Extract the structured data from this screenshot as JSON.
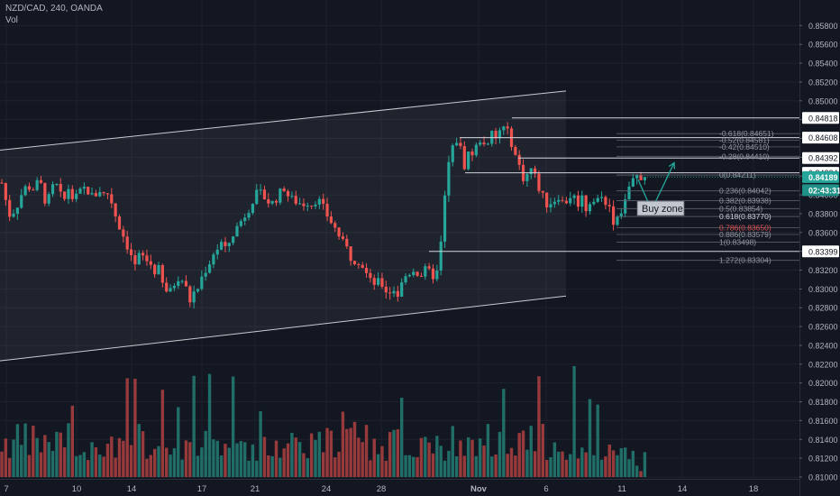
{
  "header": {
    "symbol_line": "NZD/CAD, 240, OANDA",
    "volume_label": "Vol"
  },
  "colors": {
    "background": "#131722",
    "up": "#26a69a",
    "down": "#ef5350",
    "up_volume": "#22786f",
    "down_volume": "#a63e3f",
    "channel_line": "#c9cbd0",
    "level_line": "#d1d4dc",
    "fib_text": "#9598a1",
    "fib_highlight_text": "#d1d4dc",
    "fib_red_text": "#e05252",
    "current_price_bg": "#26a69a",
    "countdown_bg": "#1f9186",
    "level_label_bg": "#ffffff",
    "level_label_text": "#131722",
    "arrow": "#26a69a",
    "buy_zone_bg": "#d1d4dc",
    "buy_zone_text": "#131722"
  },
  "chart_data": {
    "type": "candlestick",
    "y_axis": {
      "range": [
        0.80995,
        0.86
      ],
      "ticks": [
        "0.85800",
        "0.85600",
        "0.85400",
        "0.85200",
        "0.85000",
        "0.84800",
        "0.84600",
        "0.84400",
        "0.84200",
        "0.84000",
        "0.83800",
        "0.83600",
        "0.83400",
        "0.83200",
        "0.83000",
        "0.82800",
        "0.82600",
        "0.82400",
        "0.82200",
        "0.82000",
        "0.81800",
        "0.81600",
        "0.81400",
        "0.81200",
        "0.81000"
      ]
    },
    "x_axis": {
      "ticks": [
        "7",
        "10",
        "14",
        "17",
        "21",
        "24",
        "28",
        "Nov",
        "6",
        "11",
        "14",
        "18"
      ]
    },
    "price_path": [
      [
        0,
        0.8413
      ],
      [
        5,
        0.8418
      ],
      [
        10,
        0.8398
      ],
      [
        14,
        0.8378
      ],
      [
        19,
        0.8382
      ],
      [
        24,
        0.839
      ],
      [
        30,
        0.8405
      ],
      [
        35,
        0.841
      ],
      [
        40,
        0.8405
      ],
      [
        45,
        0.8412
      ],
      [
        50,
        0.841
      ],
      [
        55,
        0.8392
      ],
      [
        60,
        0.8398
      ],
      [
        65,
        0.8415
      ],
      [
        70,
        0.8402
      ],
      [
        75,
        0.8392
      ],
      [
        80,
        0.8408
      ],
      [
        85,
        0.8396
      ],
      [
        90,
        0.8398
      ],
      [
        95,
        0.8405
      ],
      [
        100,
        0.8408
      ],
      [
        105,
        0.8398
      ],
      [
        110,
        0.84
      ],
      [
        115,
        0.8405
      ],
      [
        120,
        0.84
      ],
      [
        125,
        0.8402
      ],
      [
        130,
        0.8387
      ],
      [
        135,
        0.837
      ],
      [
        140,
        0.836
      ],
      [
        145,
        0.8347
      ],
      [
        150,
        0.8336
      ],
      [
        155,
        0.8322
      ],
      [
        160,
        0.834
      ],
      [
        165,
        0.833
      ],
      [
        170,
        0.833
      ],
      [
        175,
        0.8318
      ],
      [
        180,
        0.8322
      ],
      [
        185,
        0.8304
      ],
      [
        190,
        0.8297
      ],
      [
        195,
        0.8297
      ],
      [
        200,
        0.8313
      ],
      [
        205,
        0.8312
      ],
      [
        210,
        0.8303
      ],
      [
        215,
        0.8287
      ],
      [
        220,
        0.8297
      ],
      [
        225,
        0.8302
      ],
      [
        230,
        0.8318
      ],
      [
        235,
        0.8323
      ],
      [
        240,
        0.8337
      ],
      [
        245,
        0.8342
      ],
      [
        250,
        0.8349
      ],
      [
        255,
        0.834
      ],
      [
        260,
        0.8353
      ],
      [
        265,
        0.8362
      ],
      [
        270,
        0.837
      ],
      [
        275,
        0.8377
      ],
      [
        280,
        0.8385
      ],
      [
        285,
        0.8395
      ],
      [
        290,
        0.8402
      ],
      [
        295,
        0.84
      ],
      [
        300,
        0.8395
      ],
      [
        305,
        0.839
      ],
      [
        310,
        0.8395
      ],
      [
        315,
        0.8402
      ],
      [
        320,
        0.8408
      ],
      [
        325,
        0.8397
      ],
      [
        330,
        0.8394
      ],
      [
        335,
        0.8392
      ],
      [
        340,
        0.839
      ],
      [
        345,
        0.8393
      ],
      [
        350,
        0.839
      ],
      [
        355,
        0.8395
      ],
      [
        360,
        0.8392
      ],
      [
        365,
        0.8382
      ],
      [
        370,
        0.8374
      ],
      [
        375,
        0.8366
      ],
      [
        380,
        0.8358
      ],
      [
        385,
        0.8348
      ],
      [
        390,
        0.8342
      ],
      [
        395,
        0.833
      ],
      [
        400,
        0.8332
      ],
      [
        405,
        0.8328
      ],
      [
        410,
        0.8318
      ],
      [
        415,
        0.8308
      ],
      [
        420,
        0.8306
      ],
      [
        425,
        0.8307
      ],
      [
        430,
        0.8303
      ],
      [
        435,
        0.8294
      ],
      [
        440,
        0.8302
      ],
      [
        445,
        0.8292
      ],
      [
        450,
        0.8305
      ],
      [
        455,
        0.8315
      ],
      [
        460,
        0.8318
      ],
      [
        465,
        0.8322
      ],
      [
        470,
        0.8312
      ],
      [
        475,
        0.832
      ],
      [
        480,
        0.8318
      ],
      [
        485,
        0.8314
      ],
      [
        490,
        0.8318
      ],
      [
        495,
        0.836
      ],
      [
        500,
        0.8424
      ],
      [
        505,
        0.8445
      ],
      [
        510,
        0.846
      ],
      [
        515,
        0.845
      ],
      [
        520,
        0.843
      ],
      [
        525,
        0.8448
      ],
      [
        530,
        0.8442
      ],
      [
        535,
        0.8458
      ],
      [
        540,
        0.846
      ],
      [
        545,
        0.8448
      ],
      [
        550,
        0.8465
      ],
      [
        555,
        0.8458
      ],
      [
        560,
        0.8472
      ],
      [
        565,
        0.847
      ],
      [
        570,
        0.8462
      ],
      [
        575,
        0.8445
      ],
      [
        580,
        0.8432
      ],
      [
        585,
        0.8418
      ],
      [
        590,
        0.8422
      ],
      [
        595,
        0.843
      ],
      [
        600,
        0.8412
      ],
      [
        605,
        0.8402
      ],
      [
        610,
        0.839
      ],
      [
        615,
        0.8392
      ],
      [
        620,
        0.8395
      ],
      [
        625,
        0.84
      ],
      [
        630,
        0.8388
      ],
      [
        635,
        0.8398
      ],
      [
        640,
        0.84
      ],
      [
        645,
        0.839
      ],
      [
        650,
        0.8398
      ],
      [
        655,
        0.8384
      ],
      [
        660,
        0.8396
      ],
      [
        665,
        0.8392
      ],
      [
        670,
        0.8398
      ],
      [
        675,
        0.8394
      ],
      [
        680,
        0.839
      ],
      [
        685,
        0.8372
      ],
      [
        690,
        0.8378
      ],
      [
        695,
        0.8386
      ],
      [
        700,
        0.8402
      ],
      [
        705,
        0.841
      ],
      [
        710,
        0.842
      ],
      [
        712,
        0.8419
      ]
    ],
    "channel": {
      "upper": [
        [
          0,
          0.84475
        ],
        [
          628,
          0.85105
        ]
      ],
      "lower": [
        [
          0,
          0.82235
        ],
        [
          628,
          0.82925
        ]
      ],
      "shade_to_x": 628
    },
    "horizontal_levels": [
      {
        "value": 0.84818,
        "label": "0.84818",
        "from_x": 568
      },
      {
        "value": 0.84608,
        "label": "0.84608",
        "from_x": 510
      },
      {
        "value": 0.84392,
        "label": "0.84392",
        "from_x": 575
      },
      {
        "value": 0.84234,
        "label": "0.84234",
        "from_x": 516
      },
      {
        "value": 0.83399,
        "label": "0.83399",
        "from_x": 476
      }
    ],
    "current_price": {
      "value": 0.84189,
      "label": "0.84189",
      "countdown": "02:43:31"
    },
    "fibonacci": [
      {
        "label": "-0.618(0.84651)",
        "value": 0.84651,
        "style": "plain"
      },
      {
        "label": "-0.52(0.84581)",
        "value": 0.84581,
        "style": "plain"
      },
      {
        "label": "-0.42(0.84510)",
        "value": 0.8451,
        "style": "plain"
      },
      {
        "label": "-0.28(0.84410)",
        "value": 0.8441,
        "style": "plain"
      },
      {
        "label": "0(0.84211)",
        "value": 0.84211,
        "style": "plain"
      },
      {
        "label": "0.236(0.84042)",
        "value": 0.84042,
        "style": "plain"
      },
      {
        "label": "0.382(0.83938)",
        "value": 0.83938,
        "style": "plain"
      },
      {
        "label": "0.5(0.83854)",
        "value": 0.83854,
        "style": "plain"
      },
      {
        "label": "0.618(0.83770)",
        "value": 0.8377,
        "style": "highlight"
      },
      {
        "label": "0.786(0.83650)",
        "value": 0.8365,
        "style": "red"
      },
      {
        "label": "0.886(0.83579)",
        "value": 0.83579,
        "style": "plain"
      },
      {
        "label": "1(0.83498)",
        "value": 0.83498,
        "style": "plain"
      },
      {
        "label": "1.272(0.83304)",
        "value": 0.83304,
        "style": "plain"
      }
    ],
    "projection": [
      [
        708,
        0.84162
      ],
      [
        723,
        0.8384
      ],
      [
        748,
        0.84342
      ]
    ],
    "buy_zone_label": "Buy zone"
  }
}
